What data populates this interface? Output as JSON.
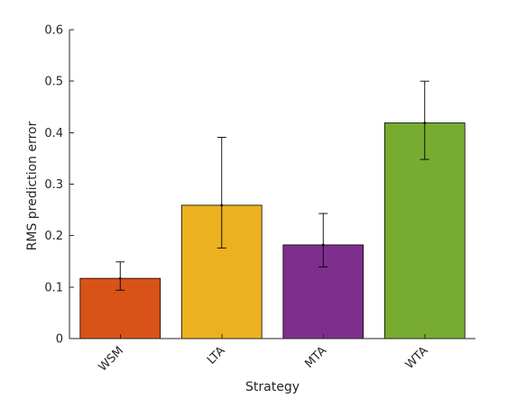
{
  "chart_data": {
    "type": "bar",
    "title": "",
    "xlabel": "Strategy",
    "ylabel": "RMS prediction error",
    "categories": [
      "WSM",
      "LTA",
      "MTA",
      "WTA"
    ],
    "values": [
      0.117,
      0.259,
      0.182,
      0.419
    ],
    "error_low": [
      0.094,
      0.176,
      0.139,
      0.348
    ],
    "error_high": [
      0.149,
      0.391,
      0.243,
      0.5
    ],
    "colors": [
      "#d95319",
      "#edb120",
      "#7e2f8e",
      "#77ac30"
    ],
    "ylim": [
      0,
      0.6
    ],
    "yticks": [
      "0",
      "0.1",
      "0.2",
      "0.3",
      "0.4",
      "0.5",
      "0.6"
    ],
    "grid": false,
    "legend": "none"
  }
}
